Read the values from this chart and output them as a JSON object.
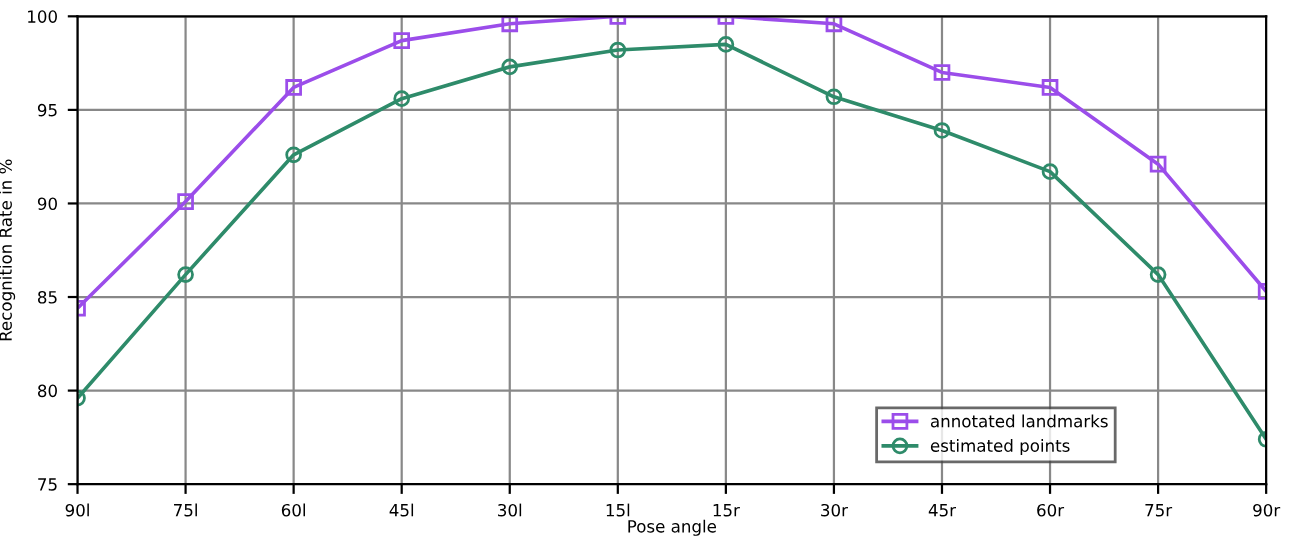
{
  "chart_data": {
    "type": "line",
    "xlabel": "Pose angle",
    "ylabel": "Recognition Rate in %",
    "categories": [
      "90l",
      "75l",
      "60l",
      "45l",
      "30l",
      "15l",
      "15r",
      "30r",
      "45r",
      "60r",
      "75r",
      "90r"
    ],
    "series": [
      {
        "name": "annotated landmarks",
        "color": "#9b4dea",
        "marker": "square",
        "values": [
          84.4,
          90.1,
          96.2,
          98.7,
          99.6,
          100,
          100,
          99.6,
          97.0,
          96.2,
          92.1,
          85.3
        ]
      },
      {
        "name": "estimated points",
        "color": "#2e8b6a",
        "marker": "circle",
        "values": [
          79.6,
          86.2,
          92.6,
          95.6,
          97.3,
          98.2,
          98.5,
          95.7,
          93.9,
          91.7,
          86.2,
          77.4
        ]
      }
    ],
    "ylim": [
      75,
      100
    ],
    "yticks": [
      75,
      80,
      85,
      90,
      95,
      100
    ],
    "grid": true,
    "legend": "bottom right",
    "line_style": "solid"
  }
}
